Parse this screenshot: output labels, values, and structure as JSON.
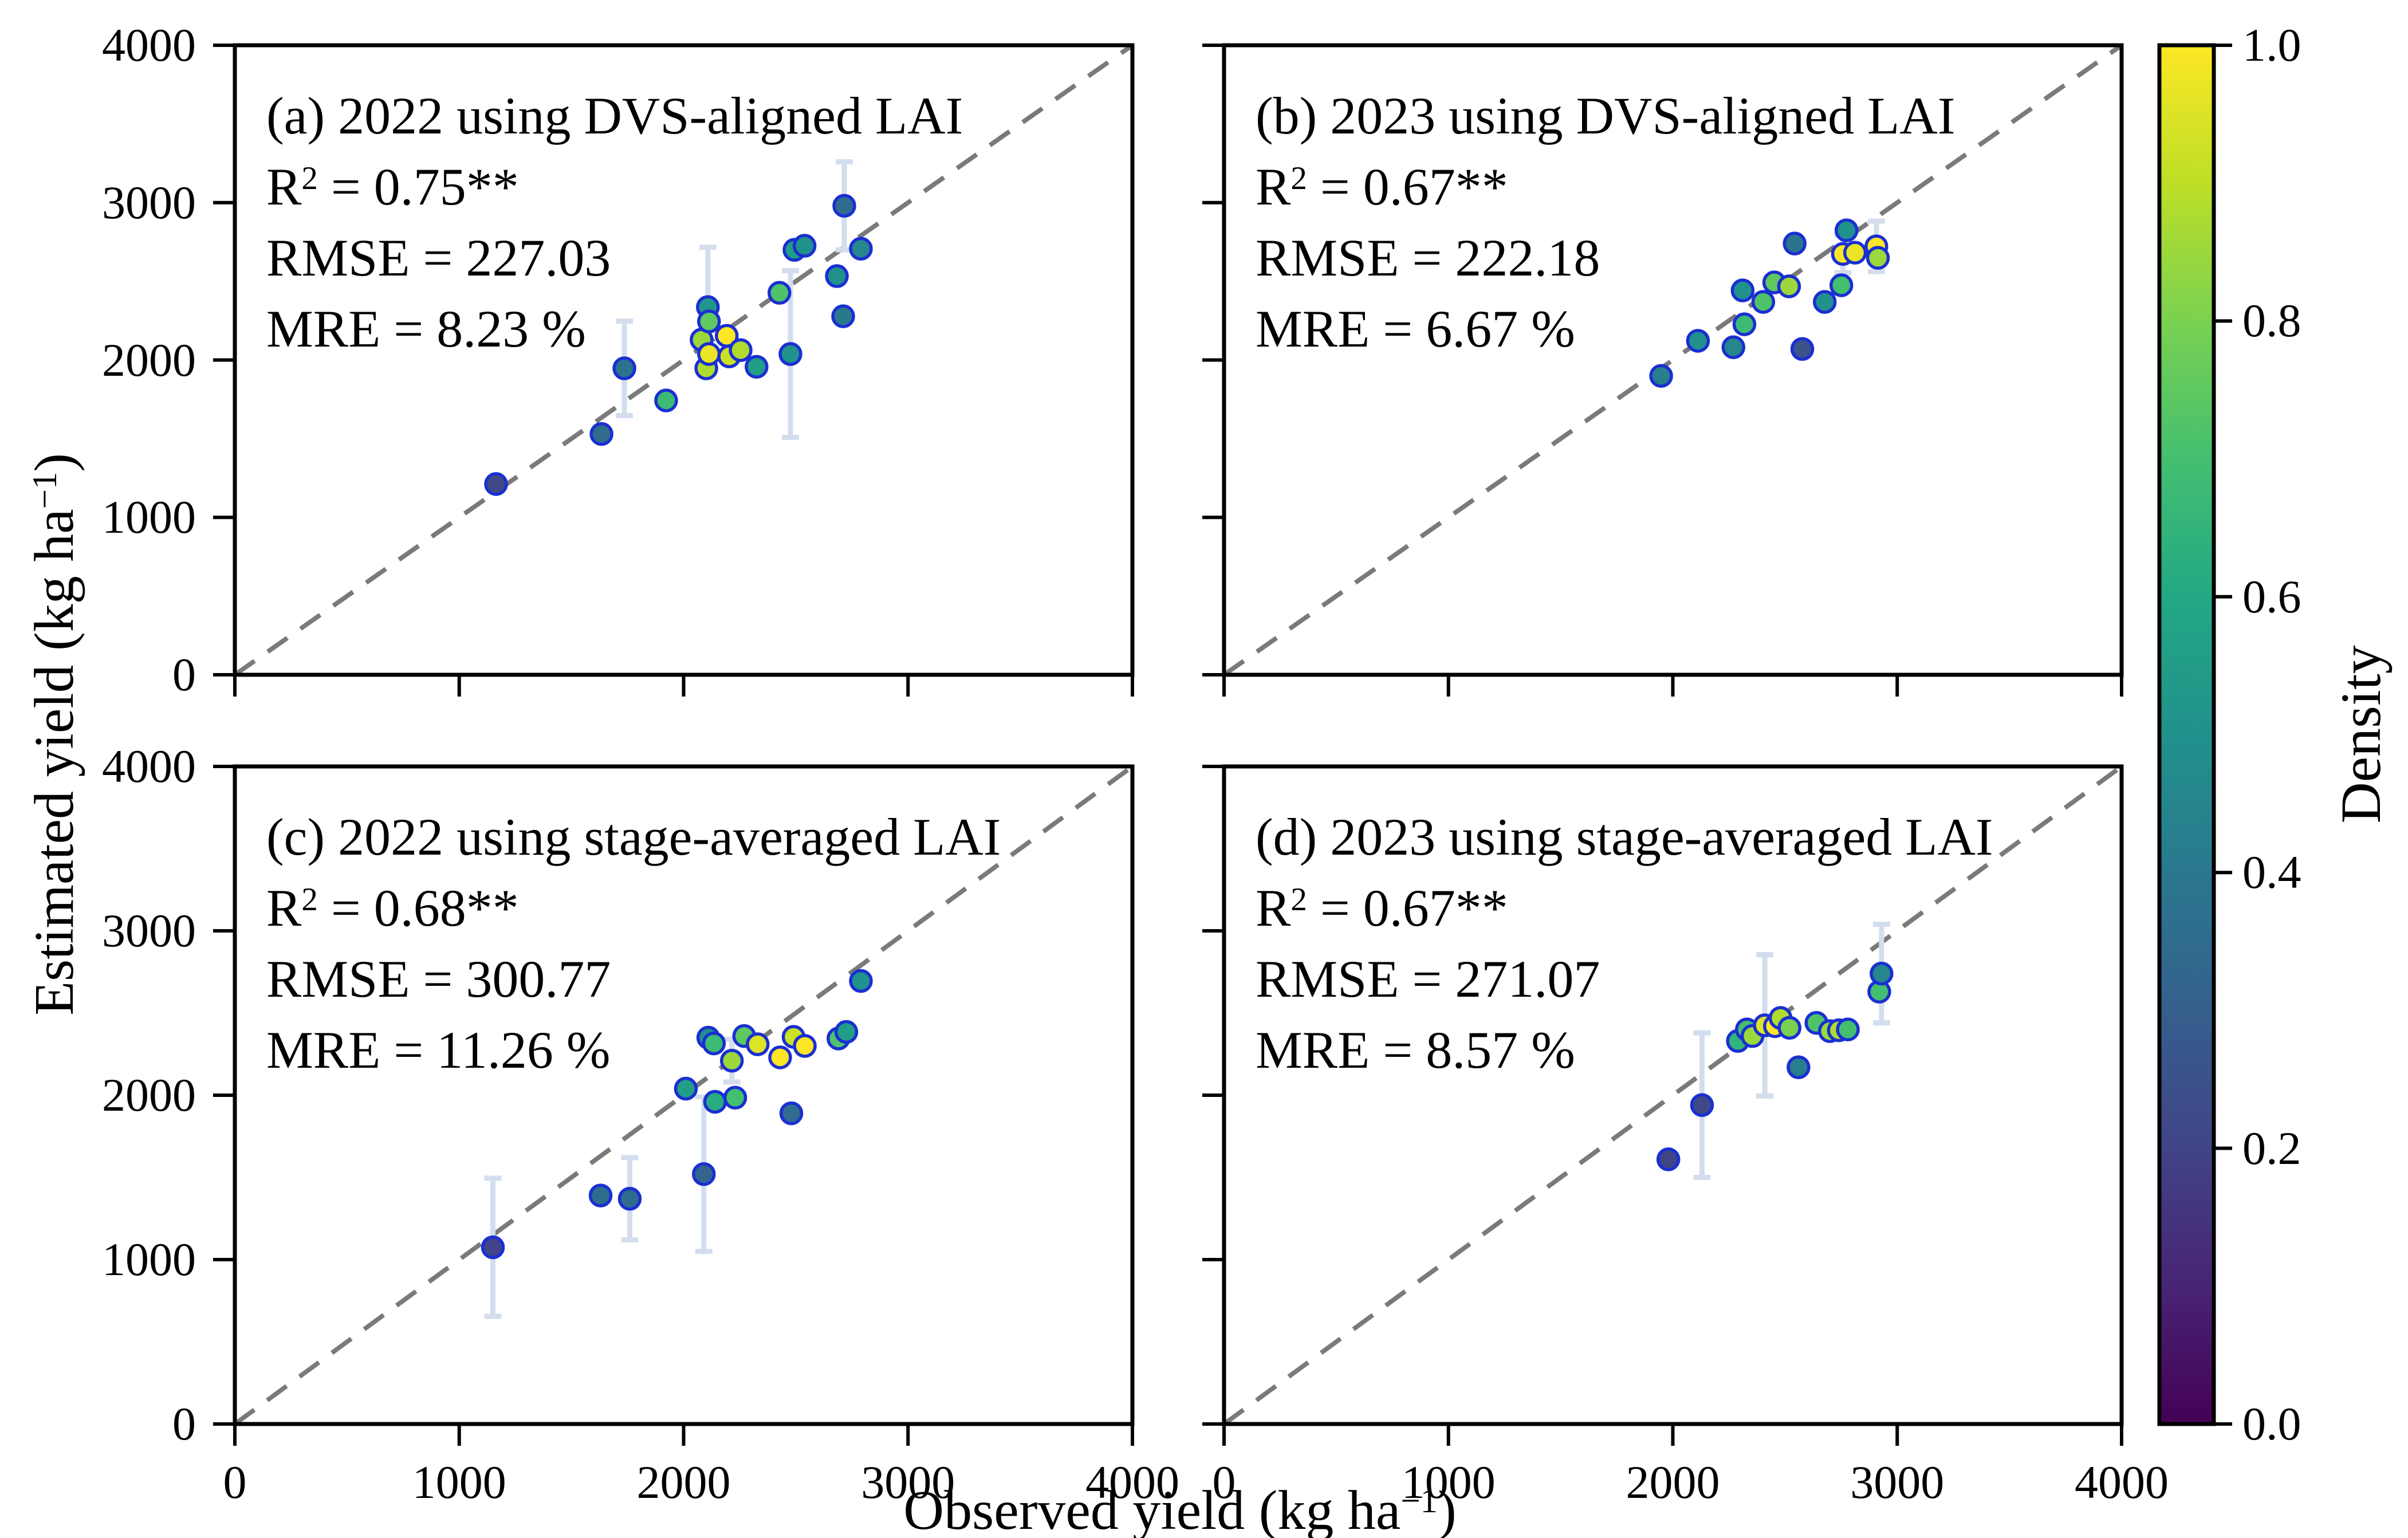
{
  "figure": {
    "background": "#ffffff"
  },
  "axes": {
    "x_label_main": "Observed yield (kg ha",
    "x_label_sup": "−1",
    "x_label_end": ")",
    "y_label_main": "Estimated yield (kg ha",
    "y_label_sup": "−1",
    "y_label_end": ")",
    "x_ticks": [
      0,
      1000,
      2000,
      3000,
      4000
    ],
    "y_ticks": [
      0,
      1000,
      2000,
      3000,
      4000
    ],
    "xlim": [
      0,
      4000
    ],
    "ylim": [
      0,
      4000
    ],
    "grid": false
  },
  "colorbar": {
    "label": "Density",
    "ticks": [
      "1.0",
      "0.8",
      "0.6",
      "0.4",
      "0.2",
      "0.0"
    ],
    "range": [
      0.0,
      1.0
    ],
    "colormap": "viridis"
  },
  "style": {
    "marker_edge_color": "#1a2fd2",
    "errorbar_color": "#d3ddee",
    "dashed_line_color": "#7a7a7a",
    "axis_color": "#000000",
    "viridis_stops": [
      "#440154",
      "#482475",
      "#414487",
      "#355f8d",
      "#2a788e",
      "#21918c",
      "#22a884",
      "#44bf70",
      "#7ad151",
      "#bddf26",
      "#fde725"
    ]
  },
  "chart_data": [
    {
      "id": "a",
      "type": "scatter",
      "title": "(a) 2022 using DVS-aligned LAI",
      "legend_position": "none",
      "stats": {
        "r2_prefix": "R",
        "r2_sup": "2",
        "r2_value": " = 0.75**",
        "rmse_text": "RMSE = 227.03",
        "mre_text": "MRE = 8.23 %"
      },
      "points": [
        [
          1164,
          1212,
          0.22,
          0
        ],
        [
          1634,
          1530,
          0.35,
          0
        ],
        [
          1736,
          1947,
          0.38,
          300
        ],
        [
          1922,
          1743,
          0.68,
          0
        ],
        [
          2080,
          2129,
          0.85,
          0
        ],
        [
          2101,
          1947,
          0.88,
          0
        ],
        [
          2108,
          2336,
          0.52,
          380
        ],
        [
          2113,
          2245,
          0.75,
          0
        ],
        [
          2113,
          2038,
          0.97,
          0
        ],
        [
          2192,
          2154,
          1.0,
          0
        ],
        [
          2203,
          2023,
          0.92,
          0
        ],
        [
          2254,
          2063,
          0.88,
          0
        ],
        [
          2325,
          1957,
          0.55,
          0
        ],
        [
          2427,
          2427,
          0.72,
          0
        ],
        [
          2476,
          2038,
          0.5,
          530
        ],
        [
          2494,
          2700,
          0.55,
          0
        ],
        [
          2539,
          2726,
          0.5,
          0
        ],
        [
          2683,
          2533,
          0.5,
          0
        ],
        [
          2711,
          2278,
          0.4,
          0
        ],
        [
          2716,
          2980,
          0.35,
          280
        ],
        [
          2790,
          2707,
          0.45,
          0
        ]
      ]
    },
    {
      "id": "b",
      "type": "scatter",
      "title": "(b) 2023 using DVS-aligned LAI",
      "legend_position": "none",
      "stats": {
        "r2_prefix": "R",
        "r2_sup": "2",
        "r2_value": " = 0.67**",
        "rmse_text": "RMSE = 222.18",
        "mre_text": "MRE = 6.67 %"
      },
      "points": [
        [
          1948,
          1899,
          0.42,
          0
        ],
        [
          2112,
          2122,
          0.5,
          0
        ],
        [
          2270,
          2081,
          0.45,
          0
        ],
        [
          2319,
          2227,
          0.68,
          0
        ],
        [
          2311,
          2442,
          0.5,
          0
        ],
        [
          2403,
          2369,
          0.72,
          0
        ],
        [
          2452,
          2493,
          0.75,
          0
        ],
        [
          2518,
          2468,
          0.85,
          0
        ],
        [
          2543,
          2740,
          0.38,
          0
        ],
        [
          2577,
          2070,
          0.25,
          0
        ],
        [
          2677,
          2369,
          0.5,
          0
        ],
        [
          2751,
          2475,
          0.7,
          0
        ],
        [
          2774,
          2824,
          0.5,
          0
        ],
        [
          2758,
          2674,
          1.0,
          120
        ],
        [
          2812,
          2682,
          0.97,
          0
        ],
        [
          2907,
          2722,
          1.0,
          160
        ],
        [
          2914,
          2649,
          0.85,
          0
        ]
      ]
    },
    {
      "id": "c",
      "type": "scatter",
      "title": "(c) 2022 using stage-averaged LAI",
      "legend_position": "none",
      "stats": {
        "r2_prefix": "R",
        "r2_sup": "2",
        "r2_value": " = 0.68**",
        "rmse_text": "RMSE = 300.77",
        "mre_text": "MRE = 11.26 %"
      },
      "points": [
        [
          1150,
          1075,
          0.2,
          420
        ],
        [
          1630,
          1390,
          0.35,
          0
        ],
        [
          1760,
          1370,
          0.35,
          250
        ],
        [
          2090,
          1520,
          0.32,
          470
        ],
        [
          2010,
          2040,
          0.55,
          0
        ],
        [
          2110,
          2350,
          0.5,
          0
        ],
        [
          2135,
          2315,
          0.68,
          0
        ],
        [
          2140,
          1960,
          0.62,
          0
        ],
        [
          2230,
          1985,
          0.7,
          0
        ],
        [
          2270,
          2360,
          0.75,
          0
        ],
        [
          2215,
          2210,
          0.85,
          130
        ],
        [
          2330,
          2310,
          0.95,
          0
        ],
        [
          2430,
          2230,
          1.0,
          0
        ],
        [
          2490,
          2355,
          0.92,
          0
        ],
        [
          2540,
          2300,
          1.0,
          0
        ],
        [
          2480,
          1890,
          0.35,
          0
        ],
        [
          2690,
          2345,
          0.72,
          0
        ],
        [
          2725,
          2385,
          0.55,
          0
        ],
        [
          2790,
          2695,
          0.5,
          0
        ]
      ]
    },
    {
      "id": "d",
      "type": "scatter",
      "title": "(d) 2023 using stage-averaged LAI",
      "legend_position": "none",
      "stats": {
        "r2_prefix": "R",
        "r2_sup": "2",
        "r2_value": " = 0.67**",
        "rmse_text": "RMSE = 271.07",
        "mre_text": "MRE = 8.57 %"
      },
      "points": [
        [
          1980,
          1610,
          0.2,
          0
        ],
        [
          2130,
          1940,
          0.22,
          440
        ],
        [
          2290,
          2330,
          0.65,
          0
        ],
        [
          2330,
          2400,
          0.7,
          0
        ],
        [
          2355,
          2360,
          0.85,
          0
        ],
        [
          2410,
          2425,
          0.95,
          430
        ],
        [
          2455,
          2420,
          1.0,
          0
        ],
        [
          2480,
          2470,
          0.88,
          0
        ],
        [
          2520,
          2410,
          0.8,
          0
        ],
        [
          2560,
          2170,
          0.42,
          0
        ],
        [
          2640,
          2440,
          0.72,
          0
        ],
        [
          2700,
          2390,
          0.85,
          0
        ],
        [
          2740,
          2395,
          0.88,
          0
        ],
        [
          2780,
          2400,
          0.7,
          0
        ],
        [
          2920,
          2630,
          0.7,
          0
        ],
        [
          2930,
          2740,
          0.45,
          300
        ]
      ]
    }
  ]
}
